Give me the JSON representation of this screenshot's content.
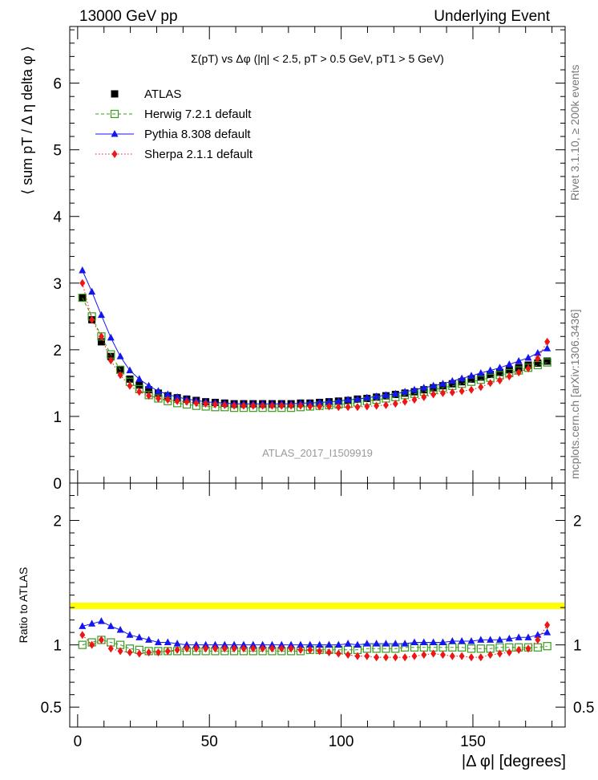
{
  "header": {
    "left": "13000 GeV pp",
    "right": "Underlying Event"
  },
  "side": {
    "rivet": "Rivet 3.1.10, ≥ 200k events",
    "mcplots": "mcplots.cern.ch [arXiv:1306.3436]"
  },
  "watermark": "ATLAS_2017_I1509919",
  "chart_data": [
    {
      "type": "scatter",
      "title": "Σ(pT) vs Δφ (|η| < 2.5, pT > 0.5 GeV, pT1 > 5 GeV)",
      "xlabel": "|Δ φ| [degrees]",
      "ylabel": "⟨ sum pT / Δ η delta φ ⟩",
      "xlim": [
        -3,
        185
      ],
      "ylim": [
        0,
        6.85
      ],
      "yticks": [
        0,
        1,
        2,
        3,
        4,
        5,
        6
      ],
      "xticks": [
        0,
        50,
        100,
        150
      ],
      "x": [
        1.8,
        5.4,
        9.0,
        12.6,
        16.2,
        19.8,
        23.4,
        27.0,
        30.6,
        34.2,
        37.8,
        41.4,
        45.0,
        48.6,
        52.2,
        55.8,
        59.4,
        63.0,
        66.6,
        70.2,
        73.8,
        77.4,
        81.0,
        84.6,
        88.2,
        91.8,
        95.4,
        99.0,
        102.6,
        106.2,
        109.8,
        113.4,
        117.0,
        120.6,
        124.2,
        127.8,
        131.4,
        135.0,
        138.6,
        142.2,
        145.8,
        149.4,
        153.0,
        156.6,
        160.2,
        163.8,
        167.4,
        171.0,
        174.6,
        178.2
      ],
      "series": [
        {
          "name": "ATLAS",
          "color": "#000000",
          "marker": "square-filled",
          "values": [
            2.78,
            2.45,
            2.12,
            1.9,
            1.7,
            1.56,
            1.47,
            1.4,
            1.35,
            1.31,
            1.28,
            1.26,
            1.24,
            1.22,
            1.21,
            1.2,
            1.19,
            1.19,
            1.19,
            1.19,
            1.19,
            1.19,
            1.19,
            1.2,
            1.2,
            1.21,
            1.22,
            1.23,
            1.24,
            1.26,
            1.27,
            1.29,
            1.31,
            1.33,
            1.35,
            1.37,
            1.4,
            1.43,
            1.46,
            1.49,
            1.52,
            1.56,
            1.59,
            1.63,
            1.66,
            1.7,
            1.73,
            1.77,
            1.8,
            1.83
          ]
        },
        {
          "name": "Herwig 7.2.1 default",
          "color": "#3a9a1e",
          "marker": "square-open",
          "line": "dashed",
          "values": [
            2.78,
            2.5,
            2.2,
            1.93,
            1.7,
            1.52,
            1.41,
            1.32,
            1.27,
            1.23,
            1.2,
            1.18,
            1.16,
            1.15,
            1.14,
            1.14,
            1.13,
            1.13,
            1.13,
            1.13,
            1.13,
            1.13,
            1.13,
            1.14,
            1.15,
            1.16,
            1.17,
            1.18,
            1.19,
            1.21,
            1.23,
            1.25,
            1.27,
            1.29,
            1.32,
            1.34,
            1.37,
            1.4,
            1.43,
            1.46,
            1.49,
            1.52,
            1.55,
            1.58,
            1.62,
            1.65,
            1.69,
            1.73,
            1.77,
            1.81
          ]
        },
        {
          "name": "Pythia 8.308 default",
          "color": "#1515ee",
          "marker": "triangle",
          "line": "solid",
          "values": [
            3.19,
            2.87,
            2.52,
            2.18,
            1.9,
            1.69,
            1.56,
            1.46,
            1.38,
            1.33,
            1.29,
            1.26,
            1.24,
            1.22,
            1.21,
            1.2,
            1.19,
            1.19,
            1.19,
            1.19,
            1.19,
            1.19,
            1.19,
            1.2,
            1.2,
            1.21,
            1.22,
            1.23,
            1.25,
            1.26,
            1.28,
            1.3,
            1.32,
            1.34,
            1.37,
            1.4,
            1.43,
            1.46,
            1.49,
            1.53,
            1.57,
            1.61,
            1.65,
            1.69,
            1.73,
            1.78,
            1.83,
            1.88,
            1.95,
            2.02
          ]
        },
        {
          "name": "Sherpa 2.1.1 default",
          "color": "#ee1515",
          "marker": "diamond",
          "line": "dotted",
          "values": [
            3.0,
            2.45,
            2.2,
            1.84,
            1.62,
            1.46,
            1.37,
            1.31,
            1.27,
            1.25,
            1.23,
            1.22,
            1.2,
            1.19,
            1.18,
            1.17,
            1.16,
            1.16,
            1.16,
            1.16,
            1.16,
            1.16,
            1.16,
            1.16,
            1.15,
            1.15,
            1.15,
            1.14,
            1.14,
            1.14,
            1.15,
            1.16,
            1.17,
            1.19,
            1.22,
            1.25,
            1.29,
            1.33,
            1.35,
            1.36,
            1.38,
            1.4,
            1.44,
            1.5,
            1.54,
            1.6,
            1.66,
            1.72,
            1.87,
            2.12
          ]
        }
      ]
    },
    {
      "type": "scatter",
      "title": "",
      "xlabel": "|Δ φ| [degrees]",
      "ylabel": "Ratio to ATLAS",
      "xlim": [
        -3,
        185
      ],
      "ylim": [
        0.34,
        2.3
      ],
      "yticks": [
        0.5,
        1,
        2
      ],
      "ytick_labels": [
        "0.5",
        "1",
        "2"
      ],
      "xticks": [
        0,
        50,
        100,
        150
      ],
      "xtick_labels": [
        "0",
        "50",
        "100",
        "150"
      ],
      "band_color": "#ffff00",
      "x": [
        1.8,
        5.4,
        9.0,
        12.6,
        16.2,
        19.8,
        23.4,
        27.0,
        30.6,
        34.2,
        37.8,
        41.4,
        45.0,
        48.6,
        52.2,
        55.8,
        59.4,
        63.0,
        66.6,
        70.2,
        73.8,
        77.4,
        81.0,
        84.6,
        88.2,
        91.8,
        95.4,
        99.0,
        102.6,
        106.2,
        109.8,
        113.4,
        117.0,
        120.6,
        124.2,
        127.8,
        131.4,
        135.0,
        138.6,
        142.2,
        145.8,
        149.4,
        153.0,
        156.6,
        160.2,
        163.8,
        167.4,
        171.0,
        174.6,
        178.2
      ],
      "series": [
        {
          "name": "Herwig 7.2.1 default",
          "color": "#3a9a1e",
          "marker": "square-open",
          "line": "dashed",
          "values": [
            1.0,
            1.02,
            1.04,
            1.02,
            1.0,
            0.97,
            0.96,
            0.95,
            0.95,
            0.95,
            0.95,
            0.95,
            0.95,
            0.95,
            0.95,
            0.95,
            0.95,
            0.95,
            0.95,
            0.95,
            0.95,
            0.95,
            0.95,
            0.95,
            0.96,
            0.96,
            0.96,
            0.96,
            0.96,
            0.96,
            0.97,
            0.97,
            0.97,
            0.97,
            0.98,
            0.98,
            0.98,
            0.98,
            0.98,
            0.98,
            0.98,
            0.97,
            0.97,
            0.97,
            0.98,
            0.98,
            0.98,
            0.98,
            0.98,
            0.99
          ]
        },
        {
          "name": "Pythia 8.308 default",
          "color": "#1515ee",
          "marker": "triangle",
          "line": "solid",
          "values": [
            1.15,
            1.17,
            1.19,
            1.15,
            1.12,
            1.08,
            1.06,
            1.04,
            1.02,
            1.02,
            1.01,
            1.0,
            1.0,
            1.0,
            1.0,
            1.0,
            1.0,
            1.0,
            1.0,
            1.0,
            1.0,
            1.0,
            1.0,
            1.0,
            1.0,
            1.0,
            1.0,
            1.0,
            1.01,
            1.0,
            1.01,
            1.01,
            1.01,
            1.01,
            1.01,
            1.02,
            1.02,
            1.02,
            1.02,
            1.03,
            1.03,
            1.03,
            1.04,
            1.04,
            1.04,
            1.05,
            1.06,
            1.06,
            1.08,
            1.1
          ]
        },
        {
          "name": "Sherpa 2.1.1 default",
          "color": "#ee1515",
          "marker": "diamond",
          "line": "dotted",
          "values": [
            1.08,
            1.0,
            1.04,
            0.97,
            0.95,
            0.94,
            0.93,
            0.94,
            0.94,
            0.95,
            0.96,
            0.97,
            0.97,
            0.97,
            0.97,
            0.97,
            0.97,
            0.97,
            0.97,
            0.97,
            0.97,
            0.97,
            0.97,
            0.96,
            0.96,
            0.95,
            0.94,
            0.93,
            0.92,
            0.91,
            0.91,
            0.9,
            0.9,
            0.9,
            0.9,
            0.91,
            0.92,
            0.93,
            0.92,
            0.91,
            0.91,
            0.9,
            0.9,
            0.92,
            0.93,
            0.94,
            0.96,
            0.97,
            1.04,
            1.16
          ]
        }
      ]
    }
  ]
}
